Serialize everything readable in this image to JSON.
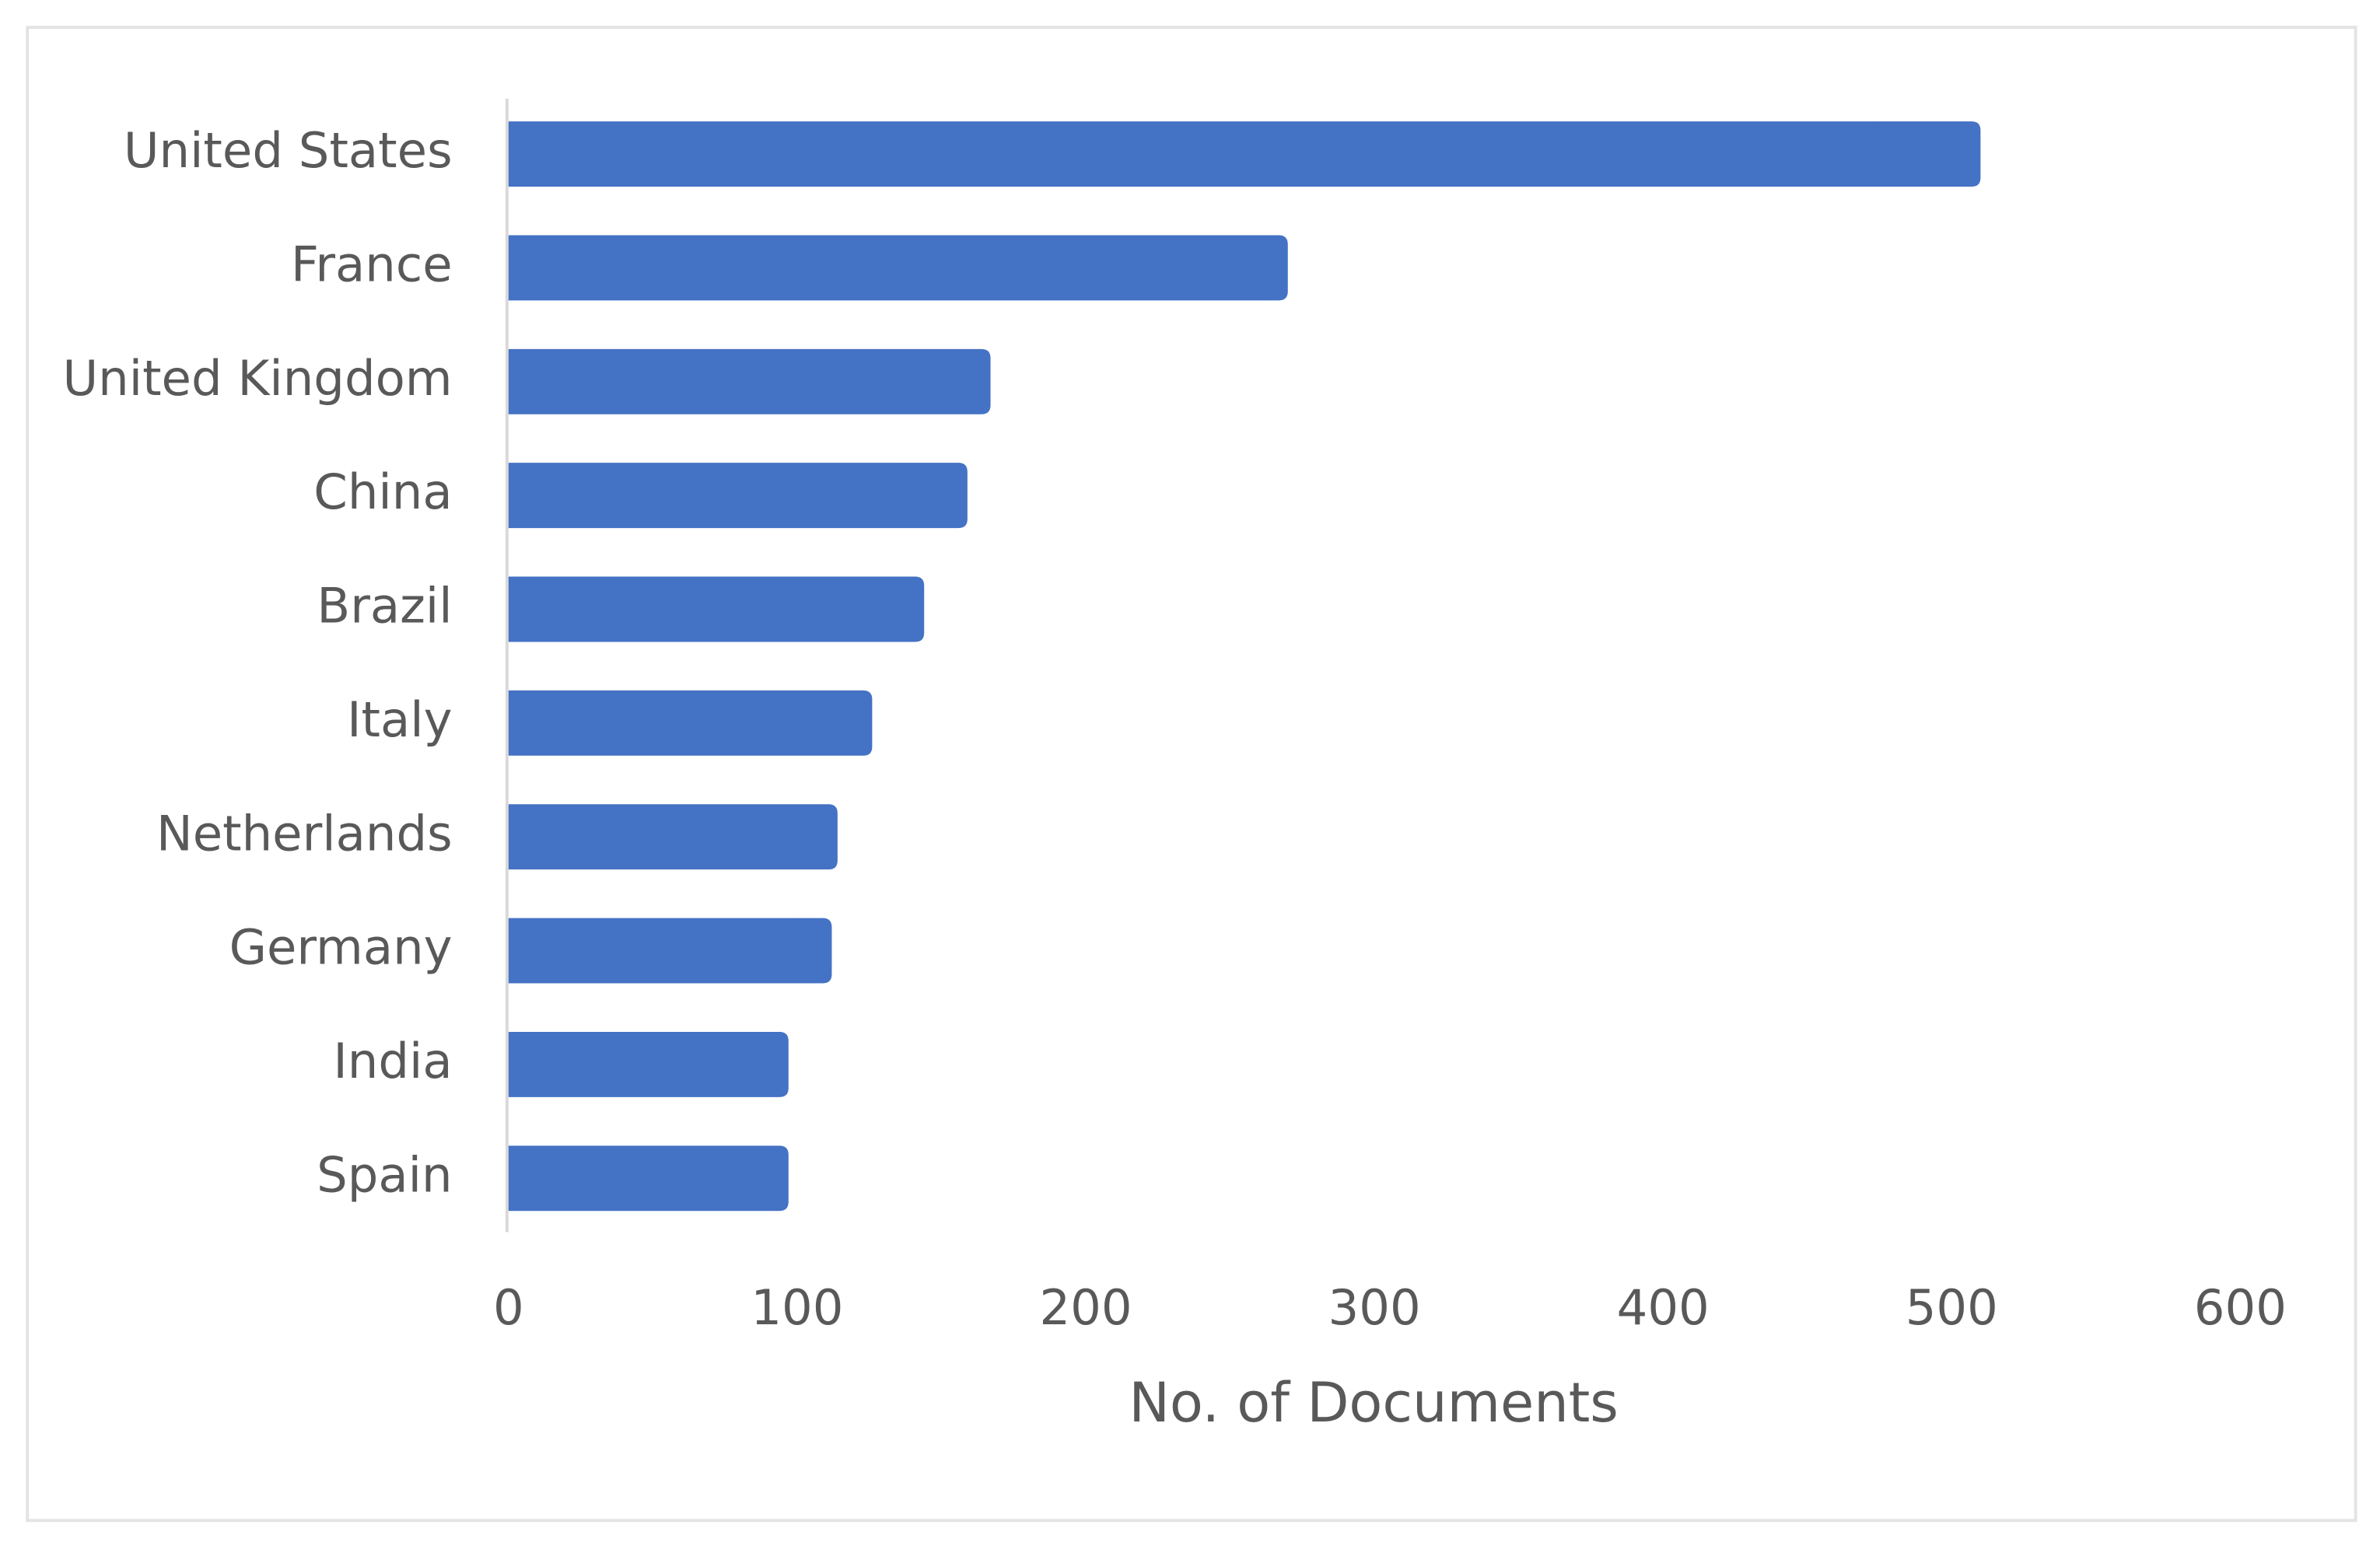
{
  "chart_data": {
    "type": "bar",
    "orientation": "horizontal",
    "x_label": "No. of Documents",
    "categories": [
      "United States",
      "France",
      "United Kingdom",
      "China",
      "Brazil",
      "Italy",
      "Netherlands",
      "Germany",
      "India",
      "Spain"
    ],
    "values": [
      510,
      270,
      167,
      159,
      144,
      126,
      114,
      112,
      97,
      97
    ],
    "color": "#4472c4",
    "xlim": [
      0,
      600
    ],
    "xticks": [
      0,
      100,
      200,
      300,
      400,
      500,
      600
    ],
    "grid": false
  }
}
